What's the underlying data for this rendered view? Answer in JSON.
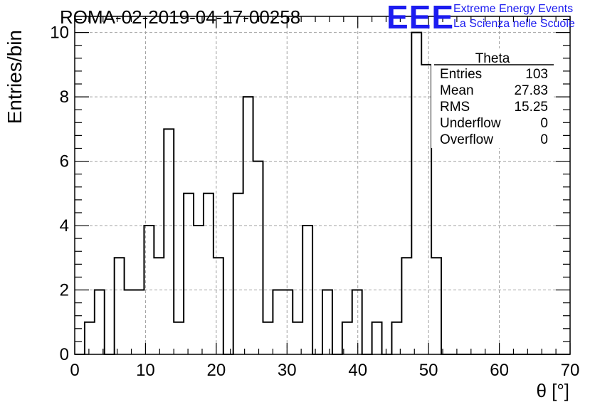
{
  "header": {
    "run_title": "ROMA-02-2019-04-17-00258",
    "logo_letters": "EEE",
    "logo_line1": "Extreme Energy Events",
    "logo_line2": "La Scienza nelle Scuole",
    "logo_color": "#1c1cf0"
  },
  "chart_data": {
    "type": "histogram",
    "title": "",
    "xlabel": "θ [°]",
    "ylabel": "Entries/bin",
    "xlim": [
      0,
      70
    ],
    "ylim": [
      0,
      10.5
    ],
    "xticks": [
      0,
      10,
      20,
      30,
      40,
      50,
      60,
      70
    ],
    "yticks": [
      0,
      2,
      4,
      6,
      8,
      10
    ],
    "grid": true,
    "bin_width": 1.4,
    "bin_edges_start": 0,
    "counts": [
      0,
      1,
      2,
      0,
      3,
      2,
      2,
      4,
      3,
      7,
      1,
      5,
      4,
      5,
      3,
      0,
      5,
      8,
      6,
      1,
      2,
      2,
      1,
      4,
      0,
      2,
      0,
      1,
      2,
      0,
      1,
      0,
      1,
      3,
      10,
      9,
      3,
      0,
      0,
      0,
      0,
      0,
      0,
      0,
      0,
      0,
      0,
      0,
      0,
      0
    ],
    "stats_box": {
      "title": "Theta",
      "rows": [
        {
          "label": "Entries",
          "value": "103"
        },
        {
          "label": "Mean",
          "value": "27.83"
        },
        {
          "label": "RMS",
          "value": "15.25"
        },
        {
          "label": "Underflow",
          "value": "0"
        },
        {
          "label": "Overflow",
          "value": "0"
        }
      ]
    },
    "line_color": "#000000",
    "grid_color": "#a0a0a0"
  }
}
